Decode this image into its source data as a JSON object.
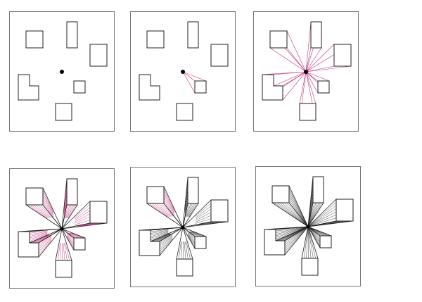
{
  "colors": {
    "construction_line": "#c4307c",
    "outline": "#222222",
    "frame": "#777777",
    "vanishing_point": "#000000"
  },
  "panels": [
    {
      "step": 1,
      "construction_lines": "none",
      "hatching": "none"
    },
    {
      "step": 2,
      "construction_lines": "one-shape",
      "hatching": "none"
    },
    {
      "step": 3,
      "construction_lines": "all-shapes",
      "hatching": "none"
    },
    {
      "step": 4,
      "construction_lines": "extruded",
      "hatching": "pink"
    },
    {
      "step": 5,
      "construction_lines": "extruded",
      "hatching": "mixed"
    },
    {
      "step": 6,
      "construction_lines": "extruded",
      "hatching": "black-shaded"
    }
  ]
}
